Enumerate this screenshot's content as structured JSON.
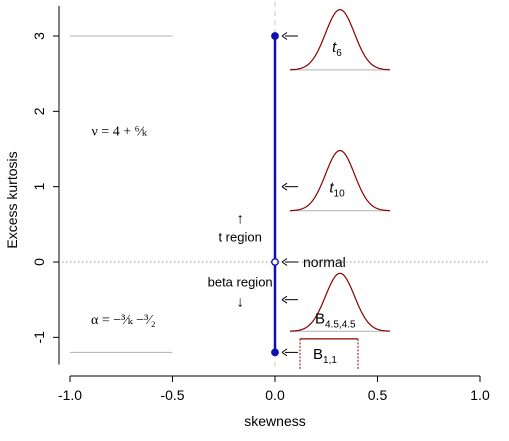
{
  "chart_data": {
    "type": "line",
    "title": "",
    "xlabel": "skewness",
    "ylabel": "Excess kurtosis",
    "xlim": [
      -1.0,
      1.0
    ],
    "ylim": [
      -1.2,
      3.0
    ],
    "x_ticks": [
      {
        "value": -1.0,
        "label": "-1.0"
      },
      {
        "value": -0.5,
        "label": "-0.5"
      },
      {
        "value": 0.0,
        "label": "0.0"
      },
      {
        "value": 0.5,
        "label": "0.5"
      },
      {
        "value": 1.0,
        "label": "1.0"
      }
    ],
    "y_ticks": [
      {
        "value": -1,
        "label": "-1"
      },
      {
        "value": 0,
        "label": "0"
      },
      {
        "value": 1,
        "label": "1"
      },
      {
        "value": 2,
        "label": "2"
      },
      {
        "value": 3,
        "label": "3"
      }
    ],
    "colors": {
      "main_line": "#1010b0",
      "density": "#8b0000",
      "reference": "#b0b0b0"
    },
    "vertical_segment": {
      "x": 0.0,
      "y_from": -1.2,
      "y_to": 3.0
    },
    "points": [
      {
        "x": 0.0,
        "y": 3.0,
        "filled": true
      },
      {
        "x": 0.0,
        "y": 0.0,
        "filled": false
      },
      {
        "x": 0.0,
        "y": -1.2,
        "filled": true
      }
    ],
    "reference_lines": [
      {
        "orientation": "horizontal",
        "y": 3.0,
        "x_from": -1.0,
        "x_to": -0.5,
        "style": "solid"
      },
      {
        "orientation": "horizontal",
        "y": -1.2,
        "x_from": -1.0,
        "x_to": -0.5,
        "style": "solid"
      },
      {
        "orientation": "horizontal",
        "y": 0.0,
        "style": "dotted"
      },
      {
        "orientation": "vertical",
        "x": 0.0,
        "style": "dashed"
      }
    ],
    "arrow_labels": [
      {
        "y": 3.0,
        "text": ""
      },
      {
        "y": 1.0,
        "text": ""
      },
      {
        "y": 0.0,
        "text": "normal"
      },
      {
        "y": -0.5,
        "text": ""
      },
      {
        "y": -1.2,
        "text": ""
      }
    ],
    "region_labels": [
      {
        "text": "t region",
        "arrow": "↑",
        "x": -0.17,
        "y": 0.27
      },
      {
        "text": "beta region",
        "arrow": "↓",
        "x": -0.17,
        "y": -0.27
      }
    ],
    "formulas": [
      {
        "text": "ν = 4 + ⁶⁄ₖ",
        "x": -0.76,
        "y": 1.68
      },
      {
        "text": "α = −³⁄ₖ −³⁄₂",
        "x": -0.74,
        "y": -0.82
      }
    ],
    "insets": [
      {
        "kind": "bell",
        "label": "t",
        "subscript": "6",
        "y_baseline": 2.55,
        "y_peak": 3.35
      },
      {
        "kind": "bell",
        "label": "t",
        "subscript": "10",
        "y_baseline": 0.68,
        "y_peak": 1.48
      },
      {
        "kind": "bell",
        "label": "B",
        "subscript": "4.5,4.5",
        "y_baseline": -0.92,
        "y_peak": -0.15
      },
      {
        "kind": "uniform",
        "label": "B",
        "subscript": "1,1",
        "y_baseline": -1.42,
        "y_peak": -1.02
      }
    ]
  }
}
